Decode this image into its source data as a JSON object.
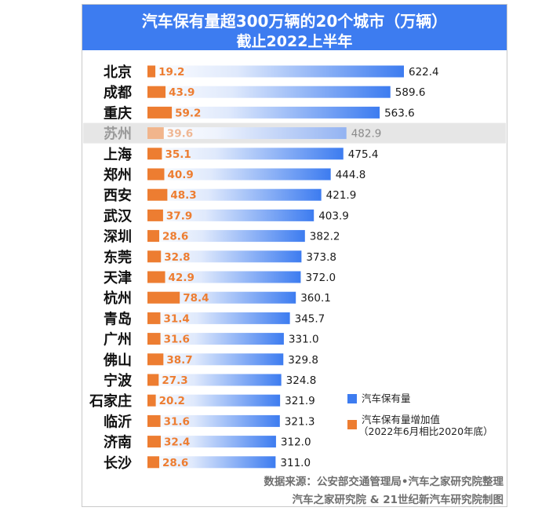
{
  "title": "汽车保有量超300万辆的20个城市（万辆）",
  "subtitle": "截止2022上半年",
  "chart_data": {
    "type": "bar",
    "orientation": "horizontal",
    "categories": [
      "北京",
      "成都",
      "重庆",
      "苏州",
      "上海",
      "郑州",
      "西安",
      "武汉",
      "深圳",
      "东莞",
      "天津",
      "杭州",
      "青岛",
      "广州",
      "佛山",
      "宁波",
      "石家庄",
      "临沂",
      "济南",
      "长沙"
    ],
    "series": [
      {
        "name": "汽车保有量",
        "color": "#3d7cf0",
        "values": [
          622.4,
          589.6,
          563.6,
          482.9,
          475.4,
          444.8,
          421.9,
          403.9,
          382.2,
          373.8,
          372.0,
          360.1,
          345.7,
          331.0,
          329.8,
          324.8,
          321.9,
          321.3,
          312.0,
          311.0
        ],
        "labels": [
          "622.4",
          "589.6",
          "563.6",
          "482.9",
          "475.4",
          "444.8",
          "421.9",
          "403.9",
          "382.2",
          "373.8",
          "372.0",
          "360.1",
          "345.7",
          "331.0",
          "329.8",
          "324.8",
          "321.9",
          "321.3",
          "312.0",
          "311.0"
        ]
      },
      {
        "name": "汽车保有量增加值",
        "color": "#ed7d31",
        "values": [
          19.2,
          43.9,
          59.2,
          39.6,
          35.1,
          40.9,
          48.3,
          37.9,
          28.6,
          32.8,
          42.9,
          78.4,
          31.4,
          31.6,
          38.7,
          27.3,
          20.2,
          31.6,
          32.4,
          28.6
        ],
        "labels": [
          "19.2",
          "43.9",
          "59.2",
          "39.6",
          "35.1",
          "40.9",
          "48.3",
          "37.9",
          "28.6",
          "32.8",
          "42.9",
          "78.4",
          "31.4",
          "31.6",
          "38.7",
          "27.3",
          "20.2",
          "31.6",
          "32.4",
          "28.6"
        ]
      }
    ],
    "highlight_category": "苏州",
    "xlim": [
      0,
      680
    ]
  },
  "legend": {
    "items": [
      {
        "label": "汽车保有量",
        "color": "#3d7cf0"
      },
      {
        "label": "汽车保有量增加值",
        "sublabel": "（2022年6月相比2020年底）",
        "color": "#ed7d31"
      }
    ]
  },
  "source": {
    "line1": "数据来源：公安部交通管理局•汽车之家研究院整理",
    "line2": "汽车之家研究院 & 21世纪新汽车研究院制图"
  }
}
